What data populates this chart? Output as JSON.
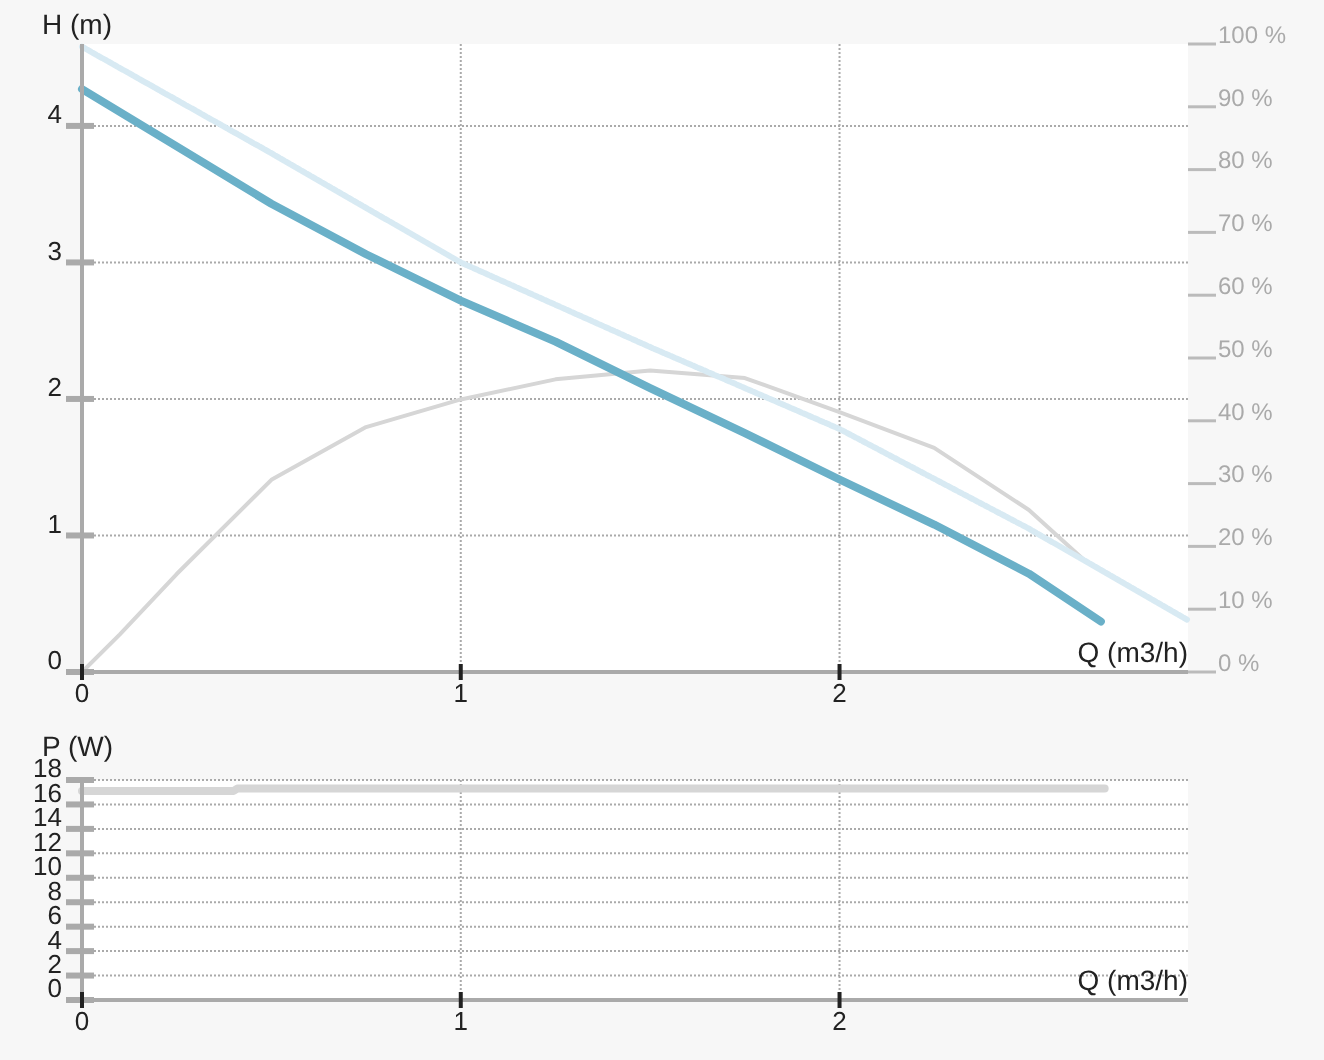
{
  "chart_data": [
    {
      "type": "line",
      "xlabel": "Q (m3/h)",
      "ylabel": "H (m)",
      "xlim": [
        0,
        2.92
      ],
      "xticks": [
        0,
        1,
        2
      ],
      "ylim": [
        0,
        4.6
      ],
      "yticks": [
        0,
        1,
        2,
        3,
        4
      ],
      "y2lim": [
        0,
        100
      ],
      "y2ticks": [
        {
          "value": 0,
          "label": "0 %"
        },
        {
          "value": 10,
          "label": "10 %"
        },
        {
          "value": 20,
          "label": "20 %"
        },
        {
          "value": 30,
          "label": "30 %"
        },
        {
          "value": 40,
          "label": "40 %"
        },
        {
          "value": 50,
          "label": "50 %"
        },
        {
          "value": 60,
          "label": "60 %"
        },
        {
          "value": 70,
          "label": "70 %"
        },
        {
          "value": 80,
          "label": "80 %"
        },
        {
          "value": 90,
          "label": "90 %"
        },
        {
          "value": 100,
          "label": "100 %"
        }
      ],
      "grid": true,
      "series": [
        {
          "color": "#d6d6d6",
          "axis": "y2",
          "x": [
            0,
            0.1,
            0.25,
            0.5,
            0.75,
            1,
            1.25,
            1.5,
            1.75,
            2,
            2.25,
            2.5,
            2.65
          ],
          "values": [
            0,
            6,
            15.6,
            30.6,
            39,
            43.4,
            46.6,
            48,
            46.8,
            41.4,
            35.7,
            25.8,
            17.6
          ]
        },
        {
          "color": "#d8eaf3",
          "line_style": "dotted",
          "x": [
            0,
            0.5,
            1,
            1.5,
            2,
            2.5,
            2.92
          ],
          "values": [
            4.58,
            3.8,
            3.0,
            2.38,
            1.78,
            1.05,
            0.38
          ]
        },
        {
          "color": "#6ab0c8",
          "x": [
            0,
            0.25,
            0.5,
            0.75,
            1,
            1.25,
            1.5,
            1.75,
            2,
            2.25,
            2.5,
            2.69
          ],
          "values": [
            4.27,
            3.85,
            3.43,
            3.06,
            2.72,
            2.42,
            2.08,
            1.75,
            1.41,
            1.08,
            0.72,
            0.37
          ]
        }
      ]
    },
    {
      "type": "line",
      "xlabel": "Q (m3/h)",
      "ylabel": "P (W)",
      "xlim": [
        0,
        2.92
      ],
      "xticks": [
        0,
        1,
        2
      ],
      "ylim": [
        0,
        18
      ],
      "yticks": [
        0,
        2,
        4,
        6,
        8,
        10,
        12,
        14,
        16,
        18
      ],
      "grid": true,
      "series": [
        {
          "color": "#d6d6d6",
          "x": [
            0,
            0.4,
            0.41,
            2.7
          ],
          "values": [
            17.1,
            17.1,
            17.3,
            17.3
          ]
        }
      ]
    }
  ]
}
